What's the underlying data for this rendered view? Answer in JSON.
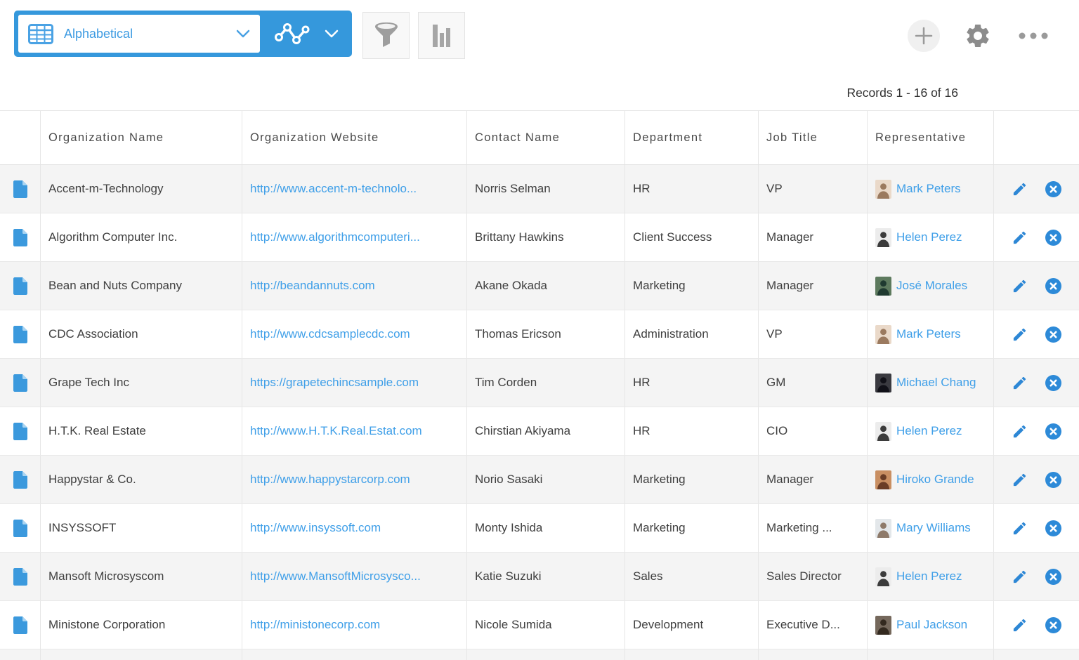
{
  "toolbar": {
    "view_select": {
      "value": "Alphabetical"
    },
    "icons": {
      "view_type": "table-grid-icon",
      "view_dropdown": "chevron-down-icon",
      "chart_view": "line-chart-icon",
      "chart_dropdown": "chevron-down-icon",
      "filter": "funnel-icon",
      "charts_button": "bar-chart-icon",
      "add": "plus-icon",
      "settings": "gear-icon",
      "more": "ellipsis-icon",
      "record": "document-icon",
      "edit": "pencil-icon",
      "delete": "circle-x-icon"
    }
  },
  "records_info": "Records 1 - 16 of 16",
  "colors": {
    "accent_blue": "#3598dc",
    "link_blue": "#3f9fe8",
    "action_blue": "#2d87d5",
    "alt_row_bg": "#f4f4f4"
  },
  "table": {
    "columns": [
      "Organization Name",
      "Organization Website",
      "Contact Name",
      "Department",
      "Job Title",
      "Representative"
    ],
    "rows": [
      {
        "organization_name": "Accent-m-Technology",
        "organization_website": "http://www.accent-m-technolo...",
        "contact_name": "Norris Selman",
        "department": "HR",
        "job_title": "VP",
        "representative": "Mark Peters",
        "avatar_bg": "#ead9c9",
        "avatar_fg": "#9b7a5f"
      },
      {
        "organization_name": "Algorithm Computer Inc.",
        "organization_website": "http://www.algorithmcomputeri...",
        "contact_name": "Brittany Hawkins",
        "department": "Client Success",
        "job_title": "Manager",
        "representative": "Helen Perez",
        "avatar_bg": "#ececec",
        "avatar_fg": "#3c3c3c"
      },
      {
        "organization_name": "Bean and Nuts Company",
        "organization_website": "http://beandannuts.com",
        "contact_name": "Akane Okada",
        "department": "Marketing",
        "job_title": "Manager",
        "representative": "José Morales",
        "avatar_bg": "#5d7a5e",
        "avatar_fg": "#1f3a30"
      },
      {
        "organization_name": "CDC Association",
        "organization_website": "http://www.cdcsamplecdc.com",
        "contact_name": "Thomas Ericson",
        "department": "Administration",
        "job_title": "VP",
        "representative": "Mark Peters",
        "avatar_bg": "#ead9c9",
        "avatar_fg": "#9b7a5f"
      },
      {
        "organization_name": "Grape Tech Inc",
        "organization_website": "https://grapetechincsample.com",
        "contact_name": "Tim Corden",
        "department": "HR",
        "job_title": "GM",
        "representative": "Michael Chang",
        "avatar_bg": "#3a3a40",
        "avatar_fg": "#111118"
      },
      {
        "organization_name": "H.T.K. Real Estate",
        "organization_website": "http://www.H.T.K.Real.Estat.com",
        "contact_name": "Chirstian Akiyama",
        "department": "HR",
        "job_title": "CIO",
        "representative": "Helen Perez",
        "avatar_bg": "#ececec",
        "avatar_fg": "#3c3c3c"
      },
      {
        "organization_name": "Happystar & Co.",
        "organization_website": "http://www.happystarcorp.com",
        "contact_name": "Norio Sasaki",
        "department": "Marketing",
        "job_title": "Manager",
        "representative": "Hiroko Grande",
        "avatar_bg": "#c98f62",
        "avatar_fg": "#6a3d26"
      },
      {
        "organization_name": "INSYSSOFT",
        "organization_website": "http://www.insyssoft.com",
        "contact_name": "Monty Ishida",
        "department": "Marketing",
        "job_title": "Marketing ...",
        "representative": "Mary Williams",
        "avatar_bg": "#e3e7ea",
        "avatar_fg": "#8e7a6a"
      },
      {
        "organization_name": "Mansoft Microsyscom",
        "organization_website": "http://www.MansoftMicrosysco...",
        "contact_name": "Katie Suzuki",
        "department": "Sales",
        "job_title": "Sales Director",
        "representative": "Helen Perez",
        "avatar_bg": "#ececec",
        "avatar_fg": "#3c3c3c"
      },
      {
        "organization_name": "Ministone Corporation",
        "organization_website": "http://ministonecorp.com",
        "contact_name": "Nicole Sumida",
        "department": "Development",
        "job_title": "Executive D...",
        "representative": "Paul Jackson",
        "avatar_bg": "#75685c",
        "avatar_fg": "#33291f"
      }
    ]
  }
}
